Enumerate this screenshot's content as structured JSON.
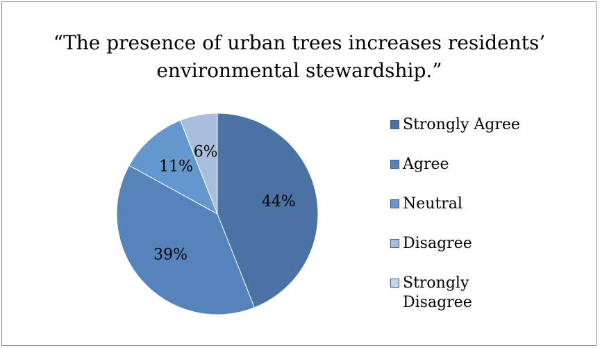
{
  "chart_data": {
    "type": "pie",
    "title_lines": [
      "“The presence of urban trees increases residents’",
      "environmental stewardship.”"
    ],
    "categories": [
      "Strongly Agree",
      "Agree",
      "Neutral",
      "Disagree",
      "Strongly Disagree"
    ],
    "values": [
      44,
      39,
      11,
      6,
      0
    ],
    "data_labels": [
      "44%",
      "39%",
      "11%",
      "6%",
      ""
    ],
    "colors": [
      "#4a72a2",
      "#5584bd",
      "#6597cf",
      "#a9bedb",
      "#c5d3e8"
    ],
    "legend_position": "right"
  }
}
